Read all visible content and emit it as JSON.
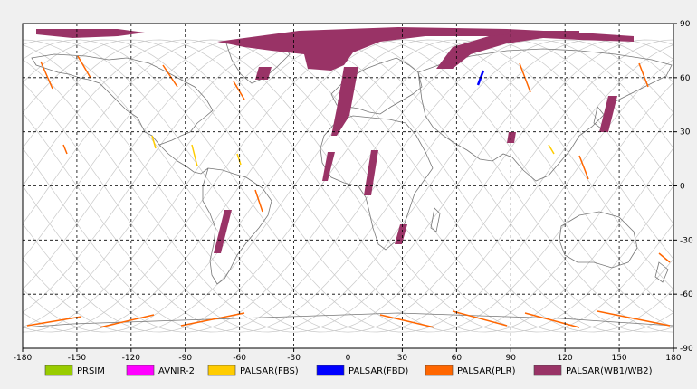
{
  "map": {
    "lon_range": [
      -180,
      180
    ],
    "lat_range": [
      -90,
      90
    ],
    "lon_ticks": [
      "-180",
      "-150",
      "-120",
      "-90",
      "-60",
      "-30",
      "0",
      "30",
      "60",
      "90",
      "120",
      "150",
      "180"
    ],
    "lat_ticks": [
      "90",
      "60",
      "30",
      "0",
      "-30",
      "-60",
      "-90"
    ],
    "colors": {
      "land_outline": "#777777",
      "orbit_track": "#c8c8c8",
      "grid": "#000000",
      "background": "#ffffff"
    }
  },
  "legend": [
    {
      "label": "PRSIM",
      "color": "#99cc00"
    },
    {
      "label": "AVNIR-2",
      "color": "#ff00ff"
    },
    {
      "label": "PALSAR(FBS)",
      "color": "#ffcc00"
    },
    {
      "label": "PALSAR(FBD)",
      "color": "#0000ff"
    },
    {
      "label": "PALSAR(PLR)",
      "color": "#ff6600"
    },
    {
      "label": "PALSAR(WB1/WB2)",
      "color": "#993366"
    }
  ]
}
